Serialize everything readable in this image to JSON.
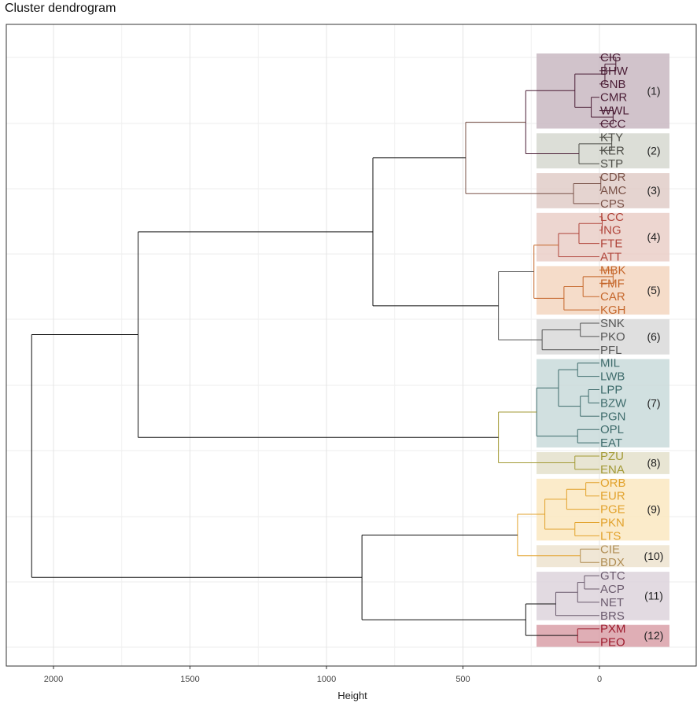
{
  "chart_title": "Cluster dendrogram",
  "chart_data": {
    "type": "dendrogram",
    "title": "Cluster dendrogram",
    "xlabel": "Height",
    "ylabel": "",
    "xlim": [
      2200,
      -250
    ],
    "x_ticks": [
      2000,
      1500,
      1000,
      500,
      0
    ],
    "x_tick_labels": [
      "2000",
      "1500",
      "1000",
      "500",
      "0"
    ],
    "grid": true,
    "leaves": [
      "CIG",
      "BHW",
      "GNB",
      "CMR",
      "WWL",
      "CCC",
      "KTY",
      "KER",
      "STP",
      "CDR",
      "AMC",
      "CPS",
      "LCC",
      "ING",
      "FTE",
      "ATT",
      "MBK",
      "FMF",
      "CAR",
      "KGH",
      "SNK",
      "PKO",
      "PFL",
      "MIL",
      "LWB",
      "LPP",
      "BZW",
      "PGN",
      "OPL",
      "EAT",
      "PZU",
      "ENA",
      "ORB",
      "EUR",
      "PGE",
      "PKN",
      "LTS",
      "CIE",
      "BDX",
      "GTC",
      "ACP",
      "NET",
      "BRS",
      "PXM",
      "PEO"
    ],
    "clusters": [
      {
        "label": "(1)",
        "leaves": [
          "CIG",
          "BHW",
          "GNB",
          "CMR",
          "WWL",
          "CCC"
        ],
        "color": "#4A1D35",
        "fill": "#C9B8C2"
      },
      {
        "label": "(2)",
        "leaves": [
          "KTY",
          "KER",
          "STP"
        ],
        "color": "#4E4E48",
        "fill": "#D6D8D0"
      },
      {
        "label": "(3)",
        "leaves": [
          "CDR",
          "AMC",
          "CPS"
        ],
        "color": "#7A5248",
        "fill": "#E1CCC8"
      },
      {
        "label": "(4)",
        "leaves": [
          "LCC",
          "ING",
          "FTE",
          "ATT"
        ],
        "color": "#B0443A",
        "fill": "#EACFC8"
      },
      {
        "label": "(5)",
        "leaves": [
          "MBK",
          "FMF",
          "CAR",
          "KGH"
        ],
        "color": "#C5662A",
        "fill": "#F3D6BF"
      },
      {
        "label": "(6)",
        "leaves": [
          "SNK",
          "PKO",
          "PFL"
        ],
        "color": "#555555",
        "fill": "#D9D9D9"
      },
      {
        "label": "(7)",
        "leaves": [
          "MIL",
          "LWB",
          "LPP",
          "BZW",
          "PGN",
          "OPL",
          "EAT"
        ],
        "color": "#3E6B6B",
        "fill": "#C9DADA"
      },
      {
        "label": "(8)",
        "leaves": [
          "PZU",
          "ENA"
        ],
        "color": "#A39A36",
        "fill": "#E4E1CB"
      },
      {
        "label": "(9)",
        "leaves": [
          "ORB",
          "EUR",
          "PGE",
          "PKN",
          "LTS"
        ],
        "color": "#E2A22C",
        "fill": "#FAE8C1"
      },
      {
        "label": "(10)",
        "leaves": [
          "CIE",
          "BDX"
        ],
        "color": "#B08E55",
        "fill": "#EDE3CF"
      },
      {
        "label": "(11)",
        "leaves": [
          "GTC",
          "ACP",
          "NET",
          "BRS"
        ],
        "color": "#6A5A6D",
        "fill": "#DDD3DC"
      },
      {
        "label": "(12)",
        "leaves": [
          "PXM",
          "PEO"
        ],
        "color": "#9C1A2C",
        "fill": "#D9A0A8"
      }
    ],
    "merges": [
      {
        "a": "CIG",
        "b": "BHW",
        "height": -60,
        "color": "#4A1D35"
      },
      {
        "a": "n0",
        "b": "GNB",
        "height": -20,
        "color": "#4A1D35"
      },
      {
        "a": "WWL",
        "b": "CCC",
        "height": -50,
        "color": "#4A1D35"
      },
      {
        "a": "CMR",
        "b": "n2",
        "height": 30,
        "color": "#4A1D35"
      },
      {
        "a": "n1",
        "b": "n3",
        "height": 90,
        "color": "#4A1D35"
      },
      {
        "a": "KTY",
        "b": "KER",
        "height": -45,
        "color": "#4E4E48"
      },
      {
        "a": "n5",
        "b": "STP",
        "height": 75,
        "color": "#4E4E48"
      },
      {
        "a": "n4",
        "b": "n6",
        "height": 270,
        "color": "#4A1D35"
      },
      {
        "a": "CDR",
        "b": "AMC",
        "height": -5,
        "color": "#7A5248"
      },
      {
        "a": "n8",
        "b": "CPS",
        "height": 95,
        "color": "#7A5248"
      },
      {
        "a": "n7",
        "b": "n9",
        "height": 490,
        "color": "#7A5248"
      },
      {
        "a": "LCC",
        "b": "ING",
        "height": -10,
        "color": "#B0443A"
      },
      {
        "a": "n11",
        "b": "FTE",
        "height": 75,
        "color": "#B0443A"
      },
      {
        "a": "n12",
        "b": "ATT",
        "height": 150,
        "color": "#B0443A"
      },
      {
        "a": "MBK",
        "b": "FMF",
        "height": -50,
        "color": "#C5662A"
      },
      {
        "a": "n14",
        "b": "CAR",
        "height": 60,
        "color": "#C5662A"
      },
      {
        "a": "n15",
        "b": "KGH",
        "height": 130,
        "color": "#C5662A"
      },
      {
        "a": "n13",
        "b": "n16",
        "height": 240,
        "color": "#C5662A"
      },
      {
        "a": "SNK",
        "b": "PKO",
        "height": 70,
        "color": "#555555"
      },
      {
        "a": "n18",
        "b": "PFL",
        "height": 210,
        "color": "#555555"
      },
      {
        "a": "n17",
        "b": "n19",
        "height": 370,
        "color": "#555555"
      },
      {
        "a": "n10",
        "b": "n20",
        "height": 830,
        "color": "#111111"
      },
      {
        "a": "MIL",
        "b": "LWB",
        "height": 80,
        "color": "#3E6B6B"
      },
      {
        "a": "LPP",
        "b": "BZW",
        "height": 40,
        "color": "#3E6B6B"
      },
      {
        "a": "n23",
        "b": "PGN",
        "height": 70,
        "color": "#3E6B6B"
      },
      {
        "a": "n22",
        "b": "n24",
        "height": 150,
        "color": "#3E6B6B"
      },
      {
        "a": "OPL",
        "b": "EAT",
        "height": 80,
        "color": "#3E6B6B"
      },
      {
        "a": "n25",
        "b": "n26",
        "height": 230,
        "color": "#3E6B6B"
      },
      {
        "a": "PZU",
        "b": "ENA",
        "height": 90,
        "color": "#A39A36"
      },
      {
        "a": "n27",
        "b": "n28",
        "height": 370,
        "color": "#A39A36"
      },
      {
        "a": "n21",
        "b": "n29",
        "height": 1690,
        "color": "#111111"
      },
      {
        "a": "ORB",
        "b": "EUR",
        "height": 50,
        "color": "#E2A22C"
      },
      {
        "a": "n31",
        "b": "PGE",
        "height": 120,
        "color": "#E2A22C"
      },
      {
        "a": "PKN",
        "b": "LTS",
        "height": 90,
        "color": "#E2A22C"
      },
      {
        "a": "n32",
        "b": "n33",
        "height": 200,
        "color": "#E2A22C"
      },
      {
        "a": "CIE",
        "b": "BDX",
        "height": 70,
        "color": "#B08E55"
      },
      {
        "a": "n34",
        "b": "n35",
        "height": 300,
        "color": "#E2A22C"
      },
      {
        "a": "GTC",
        "b": "ACP",
        "height": 55,
        "color": "#6A5A6D"
      },
      {
        "a": "n37",
        "b": "NET",
        "height": 80,
        "color": "#6A5A6D"
      },
      {
        "a": "n38",
        "b": "BRS",
        "height": 160,
        "color": "#6A5A6D"
      },
      {
        "a": "PXM",
        "b": "PEO",
        "height": 80,
        "color": "#9C1A2C"
      },
      {
        "a": "n39",
        "b": "n40",
        "height": 270,
        "color": "#111111"
      },
      {
        "a": "n36",
        "b": "n41",
        "height": 870,
        "color": "#111111"
      },
      {
        "a": "n30",
        "b": "n42",
        "height": 2080,
        "color": "#111111"
      }
    ]
  }
}
